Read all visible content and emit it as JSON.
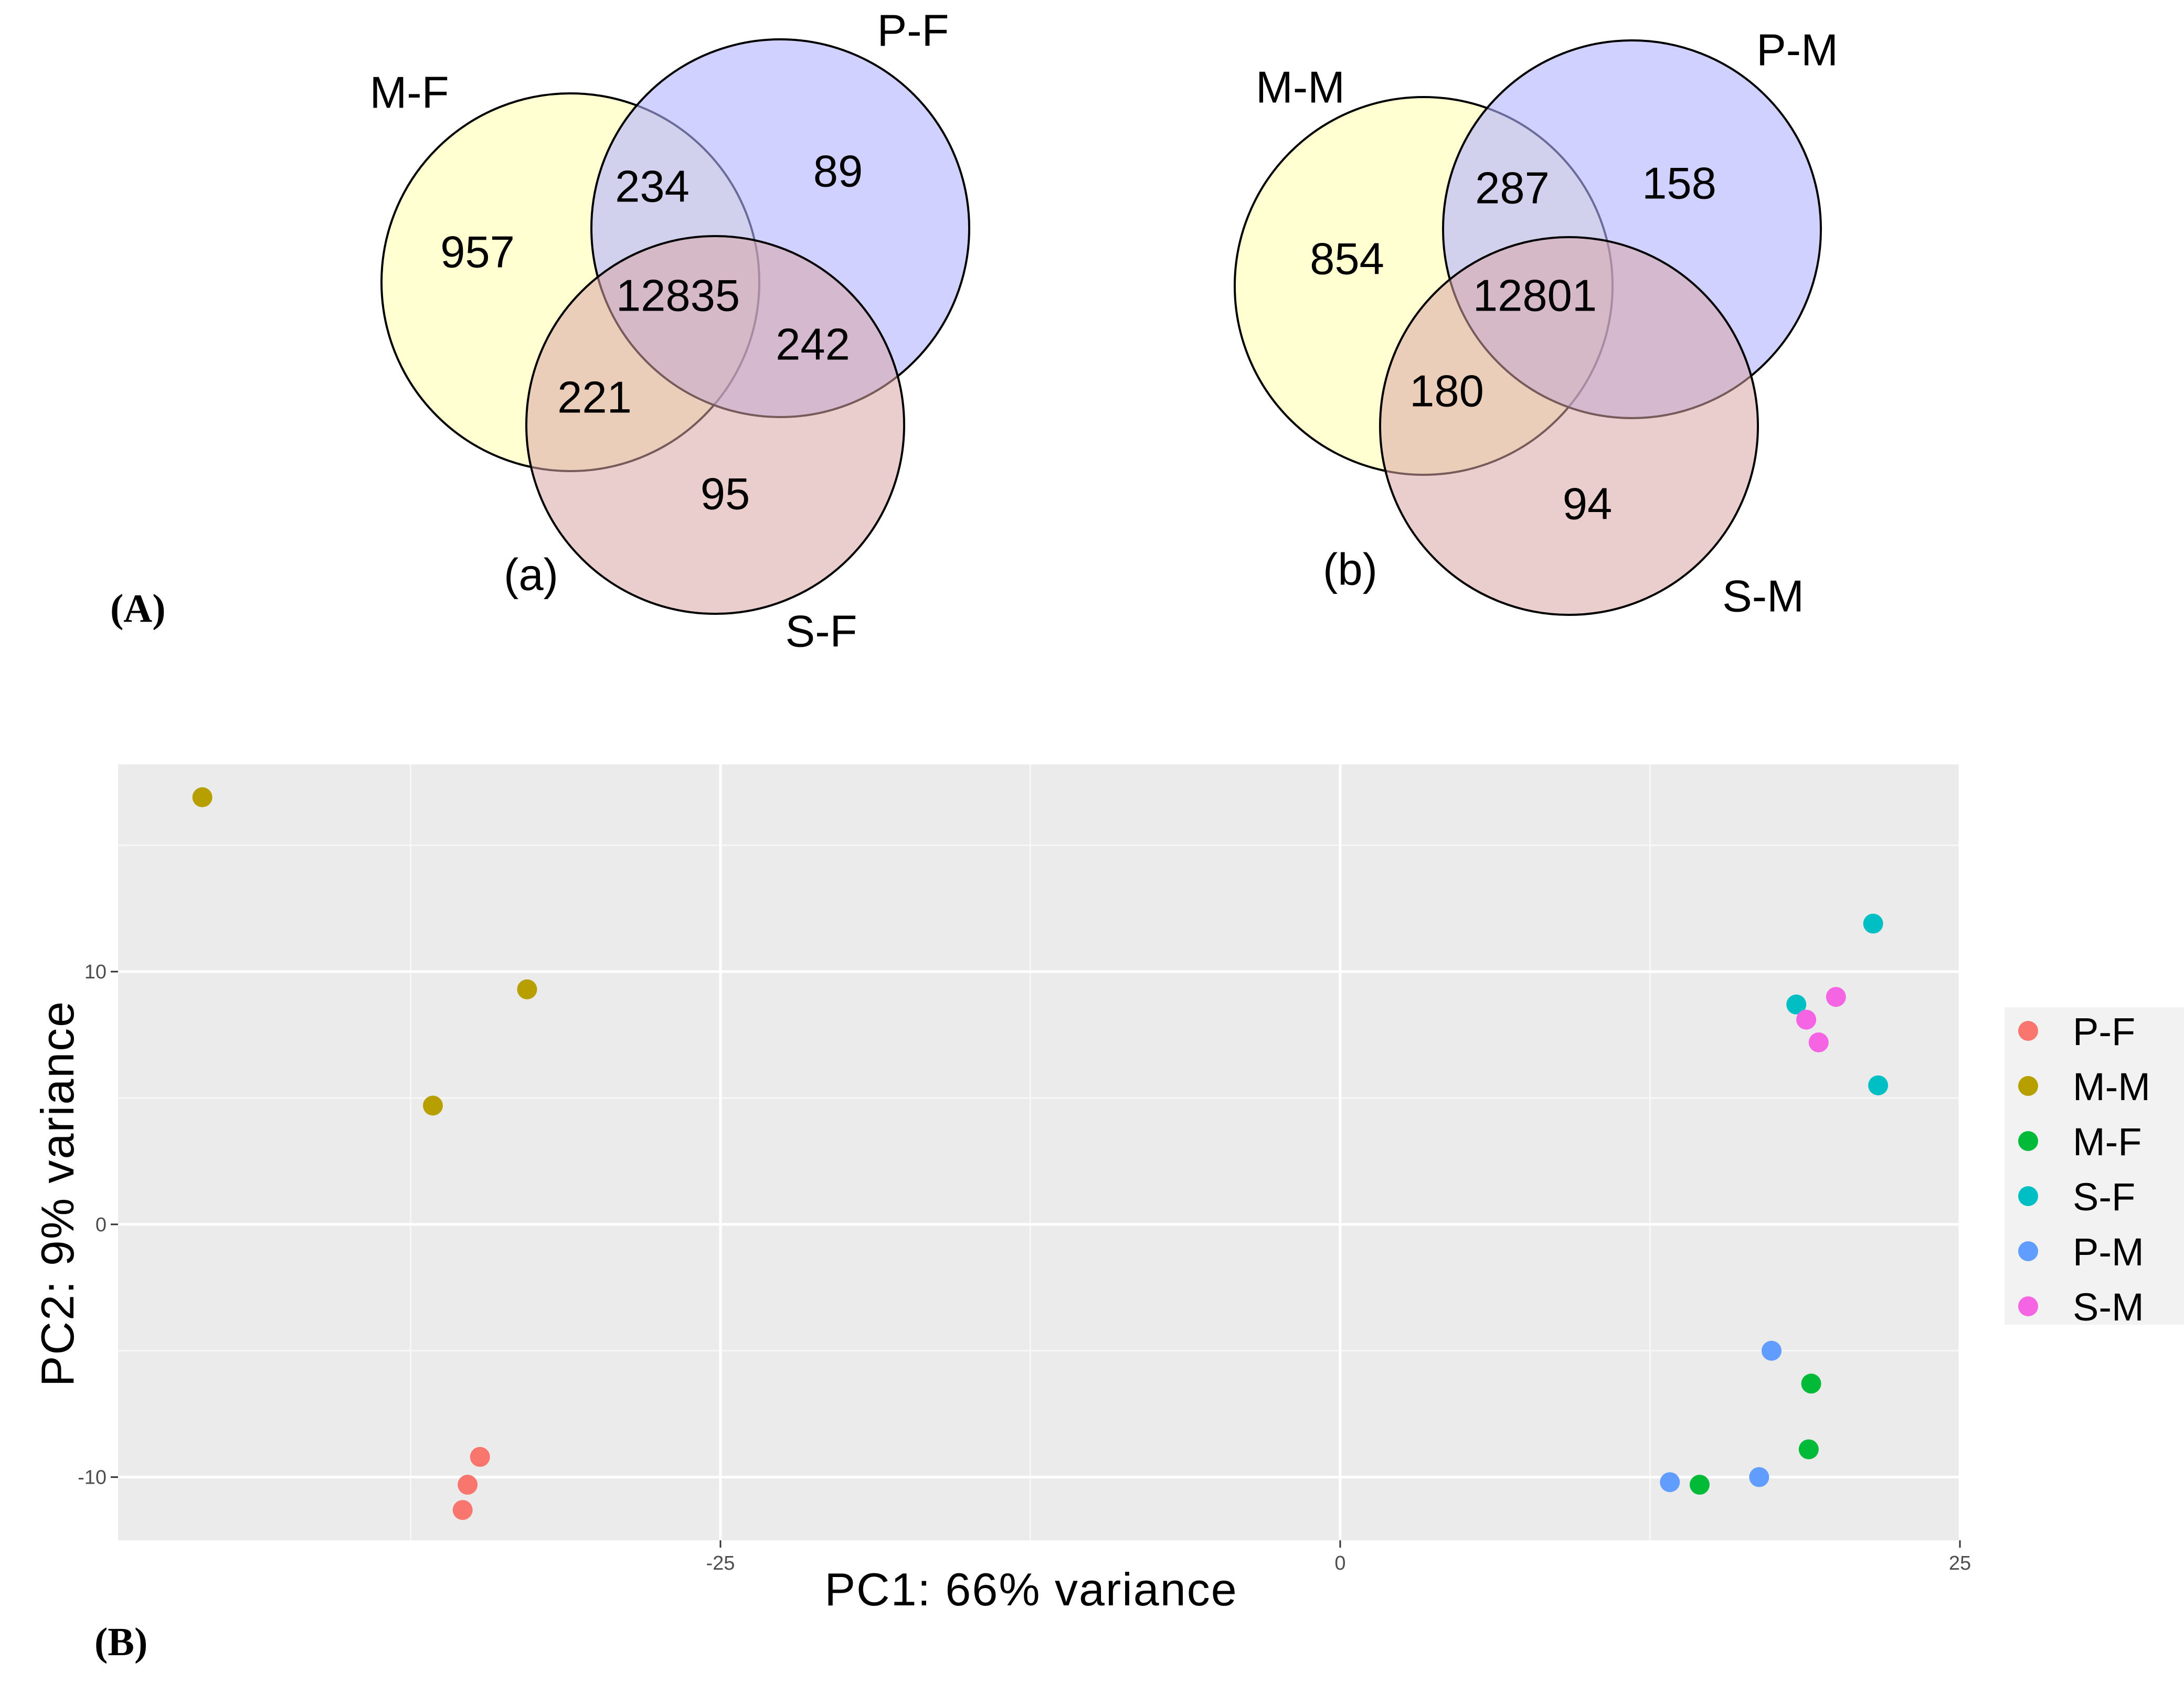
{
  "panel_labels": {
    "top": "(A)",
    "bottom": "(B)"
  },
  "venn_a": {
    "caption": "(a)",
    "sets": {
      "left": "M-F",
      "right": "P-F",
      "bottom": "S-F"
    },
    "regions": {
      "left_only": "957",
      "right_only": "89",
      "bottom_only": "95",
      "left_right": "234",
      "left_bottom": "221",
      "right_bottom": "242",
      "all": "12835"
    },
    "colors": {
      "left": "#ffffb3",
      "right": "#b3b3ff",
      "bottom": "#d9a6a6"
    }
  },
  "venn_b": {
    "caption": "(b)",
    "sets": {
      "left": "M-M",
      "right": "P-M",
      "bottom": "S-M"
    },
    "regions": {
      "left_only": "854",
      "right_only": "158",
      "bottom_only": "94",
      "left_right": "287",
      "left_bottom": "180",
      "all": "12801"
    },
    "colors": {
      "left": "#ffffb3",
      "right": "#b3b3ff",
      "bottom": "#d9a6a6"
    }
  },
  "chart_data": {
    "type": "scatter",
    "xlabel": "PC1: 66% variance",
    "ylabel": "PC2: 9% variance",
    "xlim": [
      -49.3,
      25
    ],
    "ylim": [
      -12.5,
      18.2
    ],
    "xticks": [
      -25,
      0,
      25
    ],
    "xtick_labels": [
      "-25",
      "0",
      "25"
    ],
    "yticks": [
      -10,
      0,
      10
    ],
    "ytick_labels": [
      "-10",
      "0",
      "10"
    ],
    "grid": true,
    "legend_position": "right",
    "series": [
      {
        "name": "P-F",
        "color": "#f8766d",
        "points": [
          [
            -34.7,
            -9.2
          ],
          [
            -35.2,
            -10.3
          ],
          [
            -35.4,
            -11.3
          ]
        ]
      },
      {
        "name": "M-M",
        "color": "#b79f00",
        "points": [
          [
            -45.9,
            16.9
          ],
          [
            -32.8,
            9.3
          ],
          [
            -36.6,
            4.7
          ]
        ]
      },
      {
        "name": "M-F",
        "color": "#00ba38",
        "points": [
          [
            19.0,
            -6.3
          ],
          [
            18.9,
            -8.9
          ],
          [
            14.5,
            -10.3
          ]
        ]
      },
      {
        "name": "S-F",
        "color": "#00bfc4",
        "points": [
          [
            21.5,
            11.9
          ],
          [
            18.4,
            8.7
          ],
          [
            21.7,
            5.5
          ]
        ]
      },
      {
        "name": "P-M",
        "color": "#619cff",
        "points": [
          [
            17.4,
            -5.0
          ],
          [
            16.9,
            -10.0
          ],
          [
            13.3,
            -10.2
          ]
        ]
      },
      {
        "name": "S-M",
        "color": "#f564e3",
        "points": [
          [
            20.0,
            9.0
          ],
          [
            18.8,
            8.1
          ],
          [
            19.3,
            7.2
          ]
        ]
      }
    ]
  }
}
